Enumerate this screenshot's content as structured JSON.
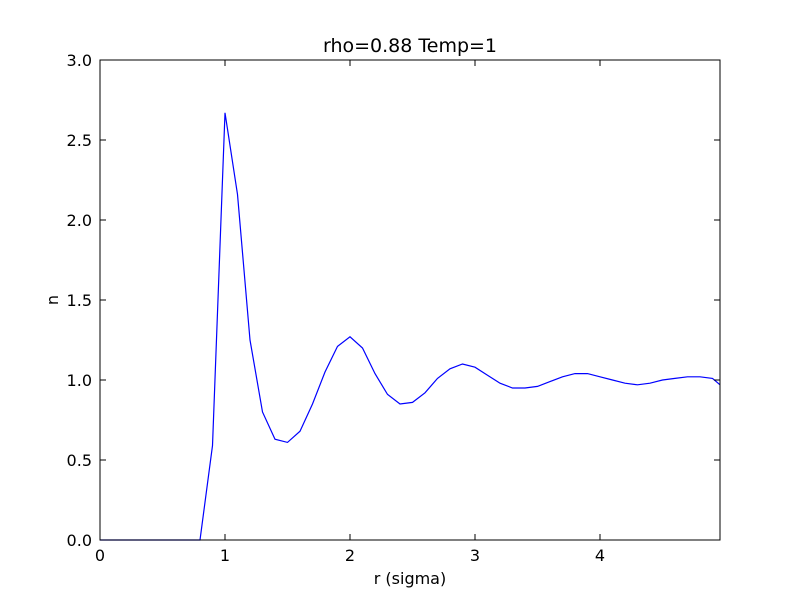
{
  "chart_data": {
    "type": "line",
    "title": "rho=0.88 Temp=1",
    "xlabel": "r (sigma)",
    "ylabel": "n",
    "xlim": [
      0,
      4.96
    ],
    "ylim": [
      0,
      3.0
    ],
    "xticks": [
      0,
      1,
      2,
      3,
      4
    ],
    "xtick_labels": [
      "0",
      "1",
      "2",
      "3",
      "4"
    ],
    "yticks": [
      0.0,
      0.5,
      1.0,
      1.5,
      2.0,
      2.5,
      3.0
    ],
    "ytick_labels": [
      "0.0",
      "0.5",
      "1.0",
      "1.5",
      "2.0",
      "2.5",
      "3.0"
    ],
    "grid": false,
    "line_color": "#0000ff",
    "series": [
      {
        "x": [
          0.0,
          0.1,
          0.2,
          0.3,
          0.4,
          0.5,
          0.6,
          0.7,
          0.8,
          0.9,
          1.0,
          1.1,
          1.2,
          1.3,
          1.4,
          1.5,
          1.6,
          1.7,
          1.8,
          1.9,
          2.0,
          2.1,
          2.2,
          2.3,
          2.4,
          2.5,
          2.6,
          2.7,
          2.8,
          2.9,
          3.0,
          3.1,
          3.2,
          3.3,
          3.4,
          3.5,
          3.6,
          3.7,
          3.8,
          3.9,
          4.0,
          4.1,
          4.2,
          4.3,
          4.4,
          4.5,
          4.6,
          4.7,
          4.8,
          4.9,
          4.96
        ],
        "y": [
          0.0,
          0.0,
          0.0,
          0.0,
          0.0,
          0.0,
          0.0,
          0.0,
          0.0,
          0.59,
          2.67,
          2.16,
          1.25,
          0.8,
          0.63,
          0.61,
          0.68,
          0.85,
          1.05,
          1.21,
          1.27,
          1.2,
          1.04,
          0.91,
          0.85,
          0.86,
          0.92,
          1.01,
          1.07,
          1.1,
          1.08,
          1.03,
          0.98,
          0.95,
          0.95,
          0.96,
          0.99,
          1.02,
          1.04,
          1.04,
          1.02,
          1.0,
          0.98,
          0.97,
          0.98,
          1.0,
          1.01,
          1.02,
          1.02,
          1.01,
          0.97
        ]
      }
    ]
  }
}
